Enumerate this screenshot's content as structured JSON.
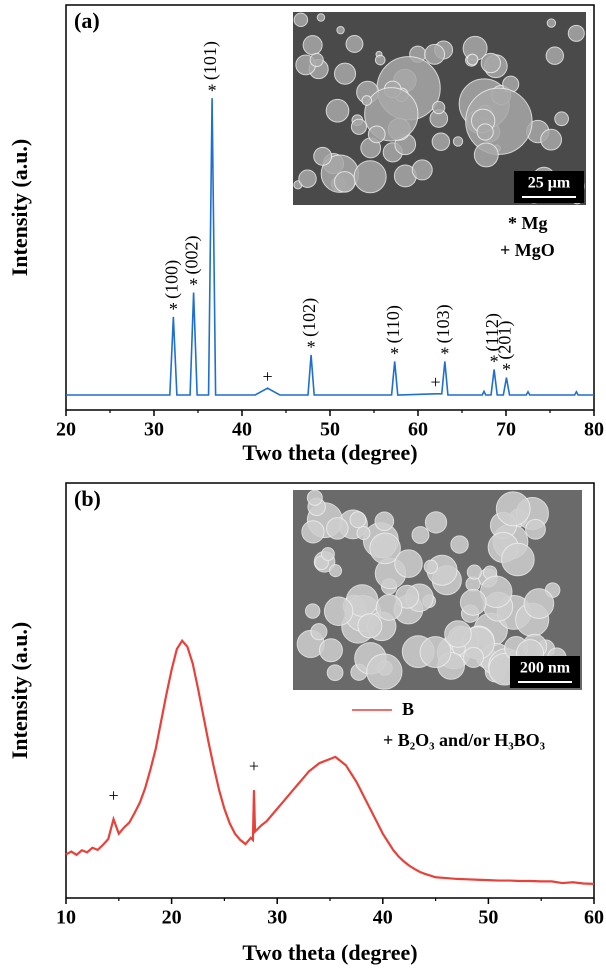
{
  "chart_data": [
    {
      "type": "line",
      "panel_label": "(a)",
      "x_label": "Two theta (degree)",
      "y_label": "Intensity (a.u.)",
      "xlim": [
        20,
        80
      ],
      "xticks": [
        20,
        30,
        40,
        50,
        60,
        70,
        80
      ],
      "ylim": [
        0,
        100
      ],
      "color": "#1f6fd1",
      "x": [
        20,
        31.8,
        32.2,
        32.6,
        34.1,
        34.5,
        34.9,
        36.2,
        36.6,
        37.0,
        41.5,
        42.9,
        44.3,
        47.5,
        47.85,
        48.2,
        57.0,
        57.35,
        57.7,
        62.0,
        62.7,
        63.05,
        63.4,
        67.3,
        67.5,
        67.7,
        68.3,
        68.65,
        69.0,
        69.7,
        70.05,
        70.4,
        72.3,
        72.5,
        72.7,
        77.8,
        78.0,
        78.2,
        80
      ],
      "values": [
        3.7,
        3.7,
        23,
        3.7,
        3.7,
        29,
        3.7,
        3.7,
        77,
        3.7,
        3.7,
        5.4,
        3.7,
        3.7,
        13.6,
        3.7,
        3.7,
        12,
        3.7,
        4.0,
        4.0,
        12,
        3.7,
        3.7,
        4.6,
        3.7,
        3.7,
        10,
        3.7,
        3.7,
        8,
        3.7,
        3.7,
        4.5,
        3.7,
        3.7,
        4.5,
        3.7,
        3.7
      ],
      "peak_labels": [
        {
          "label": "(100)",
          "marker": "*"
        },
        {
          "label": "(002)",
          "marker": "*"
        },
        {
          "label": "(101)",
          "marker": "*"
        },
        {
          "label": "(102)",
          "marker": "*"
        },
        {
          "label": "(110)",
          "marker": "*"
        },
        {
          "label": "(103)",
          "marker": "*"
        },
        {
          "label": "(112)",
          "marker": "*"
        },
        {
          "label": "(201)",
          "marker": "*"
        }
      ],
      "other_markers": [
        "+",
        "+"
      ],
      "legend_items": [
        "* Mg",
        "+ MgO"
      ],
      "scale_bar": "25 μm"
    },
    {
      "type": "line",
      "panel_label": "(b)",
      "x_label": "Two theta (degree)",
      "y_label": "Intensity (a.u.)",
      "xlim": [
        10,
        60
      ],
      "xticks": [
        10,
        20,
        30,
        40,
        50,
        60
      ],
      "ylim": [
        0,
        100
      ],
      "x": [
        10,
        10.5,
        11,
        11.5,
        12,
        12.5,
        13,
        13.5,
        14,
        14.5,
        15,
        15.5,
        16,
        16.5,
        17,
        17.5,
        18,
        18.5,
        19,
        19.5,
        20,
        20.5,
        21,
        21.5,
        22,
        22.5,
        23,
        23.5,
        24,
        24.5,
        25,
        25.5,
        26,
        26.5,
        27,
        27.5,
        27.7,
        27.8,
        27.9,
        28.5,
        29,
        29.5,
        30,
        30.5,
        31,
        31.5,
        32,
        32.5,
        33,
        33.5,
        34,
        34.5,
        35,
        35.5,
        36,
        36.5,
        37,
        37.5,
        38,
        38.5,
        39,
        39.5,
        40,
        40.5,
        41,
        41.5,
        42,
        42.5,
        43,
        43.5,
        44,
        44.5,
        45,
        46,
        47,
        48,
        49,
        50,
        51,
        52,
        53,
        54,
        55,
        56,
        57,
        58,
        59,
        60
      ],
      "series": [
        {
          "name": "B",
          "color": "#e8413a",
          "values": [
            10.5,
            11.2,
            10.4,
            11.5,
            11.0,
            12.1,
            11.6,
            12.8,
            14.2,
            19.0,
            15.5,
            17.0,
            18.2,
            20.5,
            23.0,
            26.5,
            31.0,
            36.0,
            42.5,
            49.0,
            55.0,
            60.0,
            62.0,
            60.5,
            56.5,
            50.5,
            44.0,
            37.5,
            31.5,
            26.0,
            21.5,
            18.0,
            15.5,
            14.0,
            13.0,
            14.5,
            14.0,
            26.0,
            16.0,
            17.5,
            18.5,
            20.0,
            21.5,
            23.0,
            24.5,
            26.0,
            27.5,
            29.0,
            30.5,
            31.5,
            32.5,
            33.0,
            33.5,
            34.0,
            33.0,
            32.0,
            30.0,
            28.0,
            25.5,
            23.0,
            20.5,
            18.0,
            15.5,
            13.5,
            11.5,
            10.0,
            8.8,
            7.8,
            7.0,
            6.3,
            5.8,
            5.4,
            5.0,
            4.8,
            4.6,
            4.5,
            4.4,
            4.3,
            4.2,
            4.2,
            4.1,
            4.1,
            4.0,
            4.0,
            3.6,
            3.8,
            3.5,
            3.4
          ]
        }
      ],
      "other_markers": [
        "+",
        "+"
      ],
      "legend_items": [
        "+ B₂O₃ and/or H₃BO₃"
      ],
      "scale_bar": "200 nm"
    }
  ]
}
